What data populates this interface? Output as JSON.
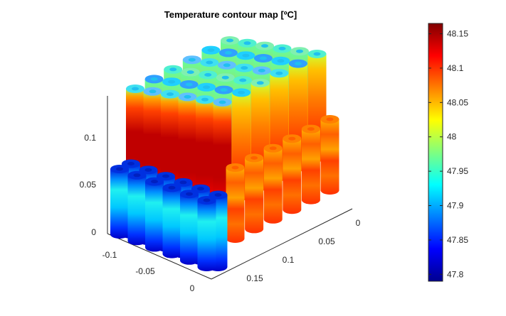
{
  "chart_data": {
    "type": "3d-cylinder-array",
    "title": "Temperature contour map [ºC]",
    "colormap": "jet",
    "colorbar": {
      "min": 47.79,
      "max": 48.165,
      "ticks": [
        "48.15",
        "48.1",
        "48.05",
        "48",
        "47.95",
        "47.9",
        "47.85",
        "47.8"
      ],
      "tick_values": [
        48.15,
        48.1,
        48.05,
        48.0,
        47.95,
        47.9,
        47.85,
        47.8
      ]
    },
    "axes": {
      "x": {
        "ticks": [
          "-0.1",
          "-0.05",
          "0"
        ],
        "tick_values": [
          -0.1,
          -0.05,
          0
        ]
      },
      "y": {
        "ticks": [
          "0",
          "0.05",
          "0.1",
          "0.15"
        ],
        "tick_values": [
          0,
          0.05,
          0.1,
          0.15
        ]
      },
      "z": {
        "ticks": [
          "0",
          "0.05",
          "0.1"
        ],
        "tick_values": [
          0,
          0.05,
          0.1
        ]
      },
      "grid": false
    },
    "blocks": [
      {
        "region": "left-lower",
        "temperature_range": [
          47.8,
          47.93
        ]
      },
      {
        "region": "left-upper",
        "temperature_range": [
          48.1,
          48.16
        ]
      },
      {
        "region": "right-lower",
        "temperature_range": [
          48.0,
          48.1
        ]
      },
      {
        "region": "right-upper",
        "temperature_range": [
          48.02,
          48.09
        ]
      },
      {
        "region": "top-caps",
        "temperature_range": [
          47.86,
          47.98
        ]
      }
    ]
  }
}
